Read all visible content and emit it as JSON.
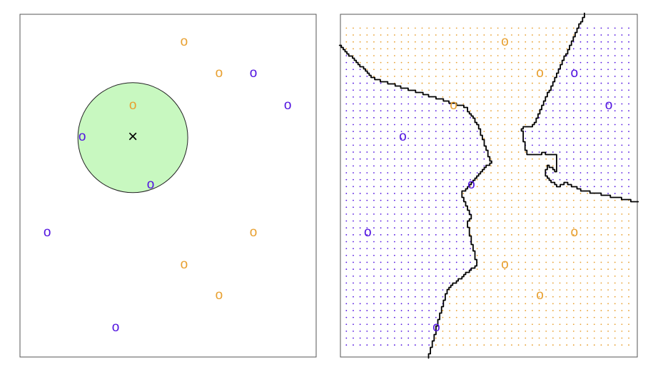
{
  "chart_data": [
    {
      "type": "scatter",
      "marker": "o",
      "xlim": [
        0,
        1
      ],
      "ylim": [
        0,
        1
      ],
      "series": [
        {
          "color": "#e8a030",
          "x": [
            0.554,
            0.672,
            0.381,
            0.788,
            0.554,
            0.672
          ],
          "values": [
            0.917,
            0.825,
            0.731,
            0.36,
            0.267,
            0.177
          ]
        },
        {
          "color": "#5214e0",
          "x": [
            0.788,
            0.904,
            0.21,
            0.441,
            0.092,
            0.323
          ],
          "values": [
            0.825,
            0.731,
            0.64,
            0.5,
            0.36,
            0.083
          ]
        }
      ],
      "query": {
        "x": 0.381,
        "y": 0.64,
        "label": "×"
      }
    },
    {
      "type": "knn-region",
      "marker": "o",
      "xlim": [
        0,
        1
      ],
      "ylim": [
        0,
        1
      ],
      "neighbors": 3,
      "series": [
        {
          "color": "#e8a030",
          "x": [
            0.554,
            0.672,
            0.381,
            0.788,
            0.554,
            0.672
          ],
          "values": [
            0.917,
            0.825,
            0.731,
            0.36,
            0.267,
            0.177
          ]
        },
        {
          "color": "#5214e0",
          "x": [
            0.788,
            0.904,
            0.21,
            0.441,
            0.092,
            0.323
          ],
          "values": [
            0.825,
            0.731,
            0.64,
            0.5,
            0.36,
            0.083
          ]
        }
      ]
    }
  ]
}
